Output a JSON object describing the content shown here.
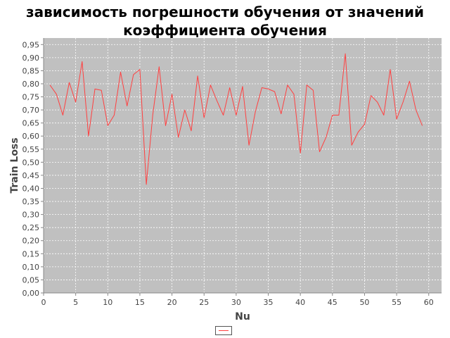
{
  "chart_data": {
    "type": "line",
    "title_lines": [
      "зависимость погрешности обучения от значений",
      "коэффициента обучения"
    ],
    "xlabel": "Nu",
    "ylabel": "Train Loss",
    "xlim": [
      0,
      62
    ],
    "ylim": [
      0.0,
      0.975
    ],
    "x_ticks": [
      0,
      5,
      10,
      15,
      20,
      25,
      30,
      35,
      40,
      45,
      50,
      55,
      60
    ],
    "y_ticks": [
      0.0,
      0.05,
      0.1,
      0.15,
      0.2,
      0.25,
      0.3,
      0.35,
      0.4,
      0.45,
      0.5,
      0.55,
      0.6,
      0.65,
      0.7,
      0.75,
      0.8,
      0.85,
      0.9,
      0.95
    ],
    "y_tick_labels": [
      "0,00",
      "0,05",
      "0,10",
      "0,15",
      "0,20",
      "0,25",
      "0,30",
      "0,35",
      "0,40",
      "0,45",
      "0,50",
      "0,55",
      "0,60",
      "0,65",
      "0,70",
      "0,75",
      "0,80",
      "0,85",
      "0,90",
      "0,95"
    ],
    "grid": true,
    "legend_position": "bottom-center",
    "colors": {
      "plot_background": "#c0c0c0",
      "grid": "#ffffff",
      "series": "#ff4040"
    },
    "series": [
      {
        "name": "",
        "x": [
          1,
          2,
          3,
          4,
          5,
          6,
          7,
          8,
          9,
          10,
          11,
          12,
          13,
          14,
          15,
          16,
          17,
          18,
          19,
          20,
          21,
          22,
          23,
          24,
          25,
          26,
          27,
          28,
          29,
          30,
          31,
          32,
          33,
          34,
          35,
          36,
          37,
          38,
          39,
          40,
          41,
          42,
          43,
          44,
          45,
          46,
          47,
          48,
          49,
          50,
          51,
          52,
          53,
          54,
          55,
          56,
          57,
          58,
          59
        ],
        "values": [
          0.795,
          0.76,
          0.68,
          0.805,
          0.73,
          0.885,
          0.6,
          0.78,
          0.775,
          0.64,
          0.68,
          0.845,
          0.715,
          0.835,
          0.855,
          0.415,
          0.68,
          0.865,
          0.64,
          0.76,
          0.595,
          0.7,
          0.62,
          0.83,
          0.67,
          0.795,
          0.735,
          0.68,
          0.785,
          0.68,
          0.79,
          0.565,
          0.695,
          0.785,
          0.78,
          0.77,
          0.685,
          0.795,
          0.76,
          0.535,
          0.795,
          0.775,
          0.54,
          0.595,
          0.68,
          0.68,
          0.915,
          0.565,
          0.615,
          0.645,
          0.755,
          0.73,
          0.68,
          0.855,
          0.665,
          0.73,
          0.81,
          0.7,
          0.64
        ]
      }
    ]
  }
}
